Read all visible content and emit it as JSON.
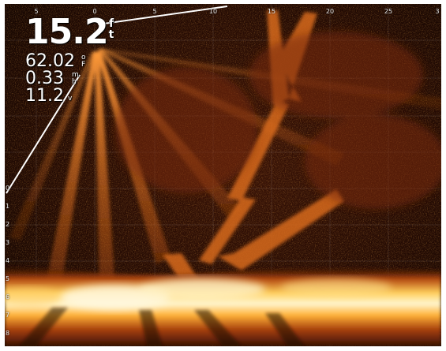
{
  "sonar": {
    "depth": {
      "value": "15.2",
      "unit": "f\nt"
    },
    "temperature": {
      "value": "62.02",
      "unit": "o\nF"
    },
    "speed": {
      "value": "0.33",
      "unit": "m\nh"
    },
    "voltage": {
      "value": "11.2",
      "unit": "v"
    },
    "top_scale": [
      "5",
      "0",
      "5",
      "10",
      "15",
      "20",
      "25",
      "3"
    ],
    "left_scale": [
      "0",
      "1",
      "2",
      "3",
      "4",
      "5",
      "6",
      "7",
      "8"
    ],
    "palette": {
      "background": "#120502",
      "beam": "#e0761e",
      "bottom": "#ffd96b",
      "text": "#ffffff"
    }
  }
}
